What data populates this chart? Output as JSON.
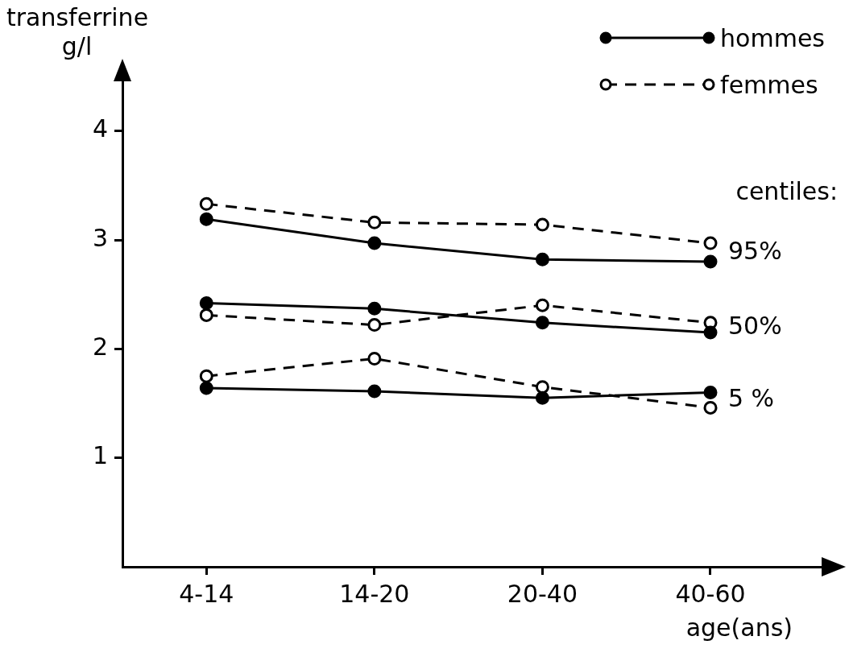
{
  "chart_data": {
    "type": "line",
    "ylabel": "transferrine g/l",
    "xlabel": "age(ans)",
    "categories": [
      "4-14",
      "14-20",
      "20-40",
      "40-60"
    ],
    "ylim": [
      0,
      4.5
    ],
    "yticks": [
      1,
      2,
      3,
      4
    ],
    "grid": false,
    "legend": "top right",
    "marker": "circle",
    "series": [
      {
        "name": "hommes",
        "color": "#000000",
        "line_style": "solid",
        "values": [
          3.19,
          2.97,
          2.82,
          2.8
        ]
      },
      {
        "name": "femmes",
        "color": "#000000",
        "line_style": "dashed",
        "values": [
          3.33,
          3.16,
          3.14,
          2.97
        ]
      },
      {
        "color": "#000000",
        "line_style": "solid",
        "values": [
          2.42,
          2.37,
          2.24,
          2.15
        ]
      },
      {
        "color": "#000000",
        "line_style": "dashed",
        "values": [
          2.31,
          2.22,
          2.4,
          2.24
        ]
      },
      {
        "color": "#000000",
        "line_style": "solid",
        "values": [
          1.64,
          1.61,
          1.55,
          1.6
        ]
      },
      {
        "color": "#000000",
        "line_style": "dashed",
        "values": [
          1.75,
          1.91,
          1.65,
          1.46
        ]
      }
    ],
    "annotations": [
      "centiles:",
      {
        "text": "95%",
        "x": "40-60",
        "y": 2.88
      },
      {
        "text": "50%",
        "x": "40-60",
        "y": 2.19
      },
      {
        "text": "5 %",
        "x": "40-60",
        "y": 1.53
      }
    ]
  }
}
